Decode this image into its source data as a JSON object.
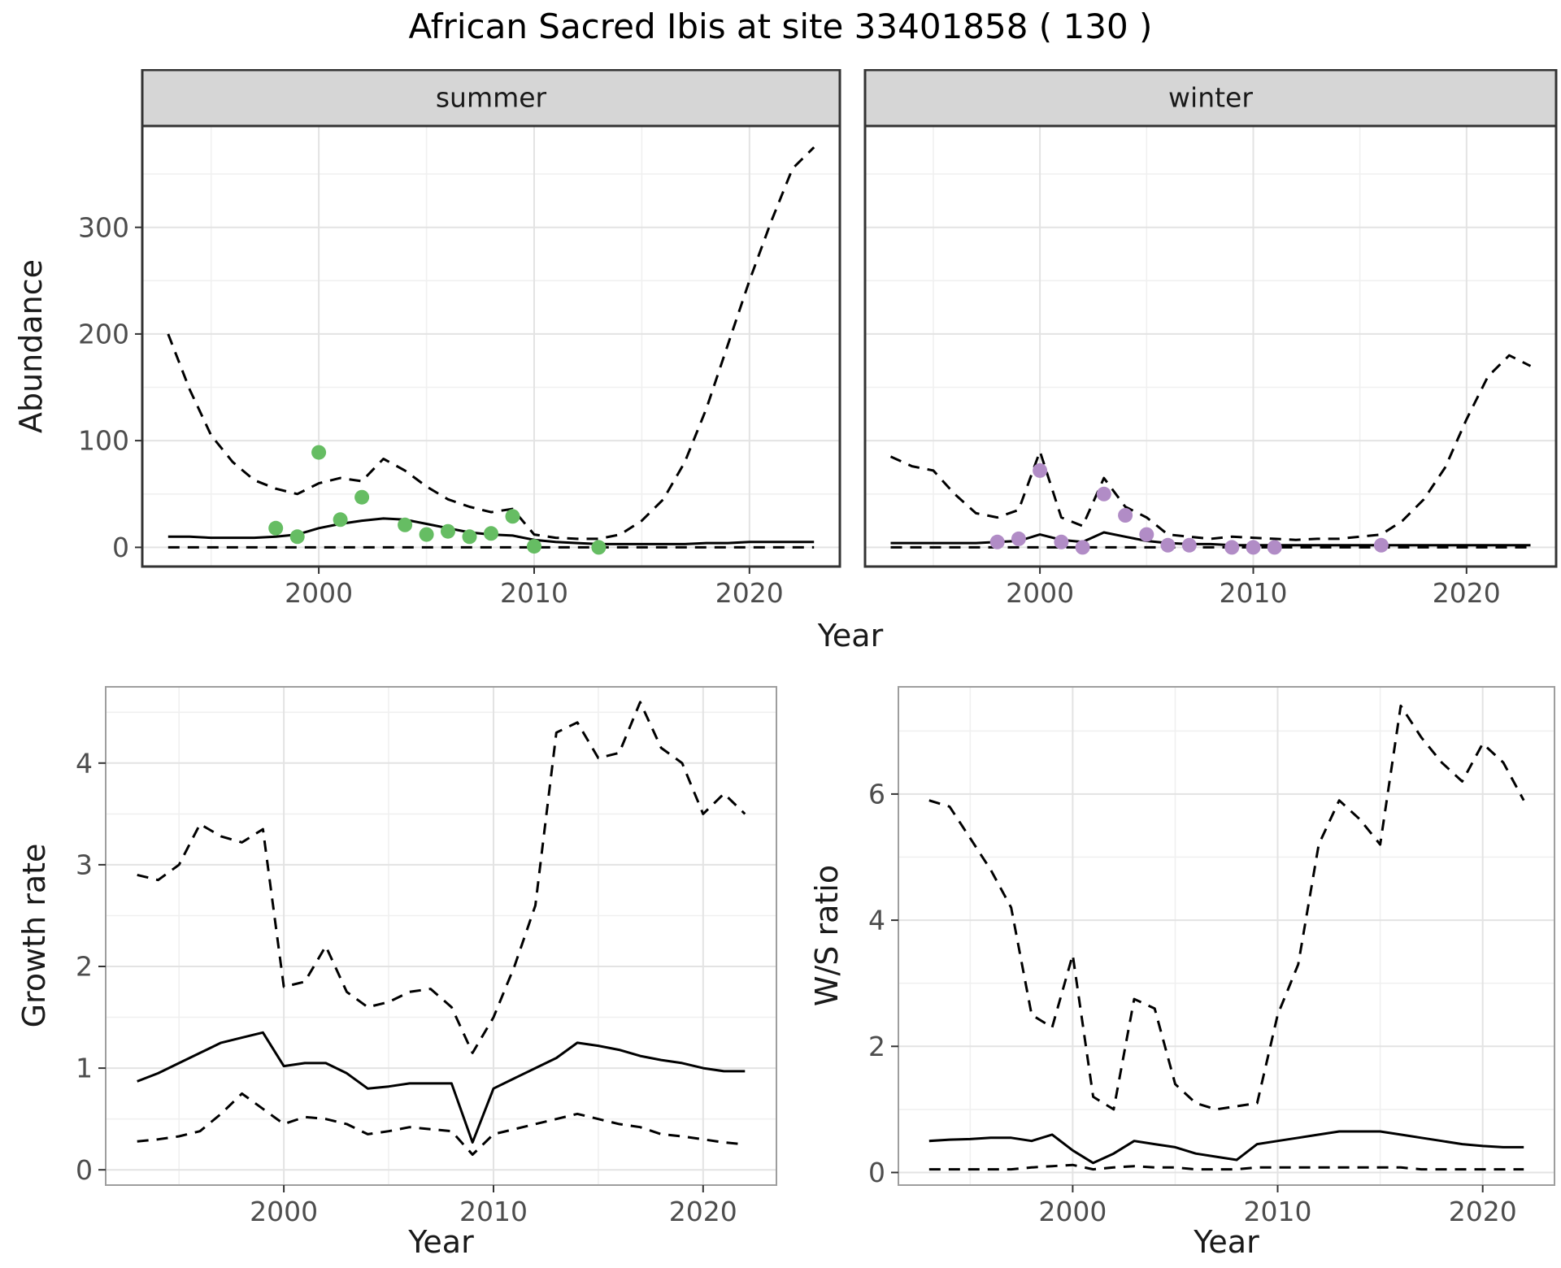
{
  "title": "African Sacred Ibis at site 33401858 ( 130 )",
  "colors": {
    "line": "#000000",
    "summer_points": "#66bd63",
    "winter_points": "#b18cc6",
    "strip_bg": "#d6d6d6",
    "grid_major": "#e3e3e3",
    "grid_minor": "#f0f0f0",
    "tick_text": "#4d4d4d"
  },
  "chart_data": [
    {
      "id": "summer-abundance",
      "type": "line",
      "facet": "summer",
      "xlabel": "Year",
      "ylabel": "Abundance",
      "xlim": [
        1991.8,
        2024.2
      ],
      "ylim": [
        -18,
        395
      ],
      "xticks": [
        2000,
        2010,
        2020
      ],
      "yticks": [
        0,
        100,
        200,
        300
      ],
      "xminor": [
        1995,
        2005,
        2015
      ],
      "yminor": [
        50,
        150,
        250,
        350
      ],
      "panel_border": "#333333",
      "show_y_axis": true,
      "series": [
        {
          "name": "upper-ci",
          "style": "dashed",
          "color": "#000000",
          "x": [
            1993,
            1994,
            1995,
            1996,
            1997,
            1998,
            1999,
            2000,
            2001,
            2002,
            2003,
            2004,
            2005,
            2006,
            2007,
            2008,
            2009,
            2010,
            2011,
            2012,
            2013,
            2014,
            2015,
            2016,
            2017,
            2018,
            2019,
            2020,
            2021,
            2022,
            2023
          ],
          "y": [
            200,
            148,
            105,
            80,
            63,
            55,
            50,
            60,
            65,
            62,
            83,
            72,
            57,
            45,
            38,
            33,
            36,
            12,
            9,
            8,
            8,
            12,
            25,
            45,
            80,
            130,
            190,
            250,
            305,
            355,
            375
          ]
        },
        {
          "name": "lower-ci",
          "style": "dashed",
          "color": "#000000",
          "x": [
            1993,
            1994,
            1995,
            1996,
            1997,
            1998,
            1999,
            2000,
            2001,
            2002,
            2003,
            2004,
            2005,
            2006,
            2007,
            2008,
            2009,
            2010,
            2011,
            2012,
            2013,
            2014,
            2015,
            2016,
            2017,
            2018,
            2019,
            2020,
            2021,
            2022,
            2023
          ],
          "y": [
            0,
            0,
            0,
            0,
            0,
            0,
            0,
            0,
            0,
            0,
            0,
            0,
            0,
            0,
            0,
            0,
            0,
            0,
            0,
            0,
            0,
            0,
            0,
            0,
            0,
            0,
            0,
            0,
            0,
            0,
            0
          ]
        },
        {
          "name": "median",
          "style": "solid",
          "color": "#000000",
          "x": [
            1993,
            1994,
            1995,
            1996,
            1997,
            1998,
            1999,
            2000,
            2001,
            2002,
            2003,
            2004,
            2005,
            2006,
            2007,
            2008,
            2009,
            2010,
            2011,
            2012,
            2013,
            2014,
            2015,
            2016,
            2017,
            2018,
            2019,
            2020,
            2021,
            2022,
            2023
          ],
          "y": [
            10,
            10,
            9,
            9,
            9,
            10,
            12,
            18,
            22,
            25,
            27,
            26,
            22,
            18,
            14,
            12,
            11,
            7,
            5,
            4,
            3,
            3,
            3,
            3,
            3,
            4,
            4,
            5,
            5,
            5,
            5
          ]
        },
        {
          "name": "observations",
          "style": "points",
          "color": "#66bd63",
          "x": [
            1998,
            1999,
            2000,
            2001,
            2002,
            2004,
            2005,
            2006,
            2007,
            2008,
            2009,
            2010,
            2013
          ],
          "y": [
            18,
            10,
            89,
            26,
            47,
            21,
            12,
            15,
            10,
            13,
            29,
            1,
            0
          ]
        }
      ]
    },
    {
      "id": "winter-abundance",
      "type": "line",
      "facet": "winter",
      "xlabel": "Year",
      "ylabel": "Abundance",
      "xlim": [
        1991.8,
        2024.2
      ],
      "ylim": [
        -18,
        395
      ],
      "xticks": [
        2000,
        2010,
        2020
      ],
      "yticks": [
        0,
        100,
        200,
        300
      ],
      "xminor": [
        1995,
        2005,
        2015
      ],
      "yminor": [
        50,
        150,
        250,
        350
      ],
      "panel_border": "#333333",
      "show_y_axis": false,
      "series": [
        {
          "name": "upper-ci",
          "style": "dashed",
          "color": "#000000",
          "x": [
            1993,
            1994,
            1995,
            1996,
            1997,
            1998,
            1999,
            2000,
            2001,
            2002,
            2003,
            2004,
            2005,
            2006,
            2007,
            2008,
            2009,
            2010,
            2011,
            2012,
            2013,
            2014,
            2015,
            2016,
            2017,
            2018,
            2019,
            2020,
            2021,
            2022,
            2023
          ],
          "y": [
            85,
            76,
            72,
            50,
            32,
            28,
            35,
            90,
            28,
            20,
            65,
            38,
            28,
            12,
            10,
            8,
            10,
            9,
            8,
            7,
            8,
            8,
            10,
            12,
            25,
            45,
            75,
            120,
            160,
            180,
            170
          ]
        },
        {
          "name": "lower-ci",
          "style": "dashed",
          "color": "#000000",
          "x": [
            1993,
            1994,
            1995,
            1996,
            1997,
            1998,
            1999,
            2000,
            2001,
            2002,
            2003,
            2004,
            2005,
            2006,
            2007,
            2008,
            2009,
            2010,
            2011,
            2012,
            2013,
            2014,
            2015,
            2016,
            2017,
            2018,
            2019,
            2020,
            2021,
            2022,
            2023
          ],
          "y": [
            0,
            0,
            0,
            0,
            0,
            0,
            0,
            0,
            0,
            0,
            0,
            0,
            0,
            0,
            0,
            0,
            0,
            0,
            0,
            0,
            0,
            0,
            0,
            0,
            0,
            0,
            0,
            0,
            0,
            0,
            0
          ]
        },
        {
          "name": "median",
          "style": "solid",
          "color": "#000000",
          "x": [
            1993,
            1994,
            1995,
            1996,
            1997,
            1998,
            1999,
            2000,
            2001,
            2002,
            2003,
            2004,
            2005,
            2006,
            2007,
            2008,
            2009,
            2010,
            2011,
            2012,
            2013,
            2014,
            2015,
            2016,
            2017,
            2018,
            2019,
            2020,
            2021,
            2022,
            2023
          ],
          "y": [
            4,
            4,
            4,
            4,
            4,
            5,
            6,
            12,
            7,
            5,
            14,
            10,
            6,
            4,
            3,
            3,
            2,
            2,
            2,
            2,
            2,
            2,
            2,
            2,
            2,
            2,
            2,
            2,
            2,
            2,
            2
          ]
        },
        {
          "name": "observations",
          "style": "points",
          "color": "#b18cc6",
          "x": [
            1998,
            1999,
            2000,
            2001,
            2002,
            2003,
            2004,
            2005,
            2006,
            2007,
            2009,
            2010,
            2011,
            2016
          ],
          "y": [
            5,
            8,
            72,
            5,
            0,
            50,
            30,
            12,
            2,
            2,
            0,
            0,
            0,
            2
          ]
        }
      ]
    },
    {
      "id": "growth-rate",
      "type": "line",
      "facet": null,
      "xlabel": "Year",
      "ylabel": "Growth rate",
      "xlim": [
        1991.5,
        2023.5
      ],
      "ylim": [
        -0.15,
        4.75
      ],
      "xticks": [
        2000,
        2010,
        2020
      ],
      "yticks": [
        0,
        1,
        2,
        3,
        4
      ],
      "xminor": [
        1995,
        2005,
        2015
      ],
      "yminor": [
        0.5,
        1.5,
        2.5,
        3.5,
        4.5
      ],
      "panel_border": "#9e9e9e",
      "show_y_axis": true,
      "series": [
        {
          "name": "upper-ci",
          "style": "dashed",
          "color": "#000000",
          "x": [
            1993,
            1994,
            1995,
            1996,
            1997,
            1998,
            1999,
            2000,
            2001,
            2002,
            2003,
            2004,
            2005,
            2006,
            2007,
            2008,
            2009,
            2010,
            2011,
            2012,
            2013,
            2014,
            2015,
            2016,
            2017,
            2018,
            2019,
            2020,
            2021,
            2022
          ],
          "y": [
            2.9,
            2.85,
            3.0,
            3.4,
            3.28,
            3.22,
            3.35,
            1.8,
            1.85,
            2.2,
            1.75,
            1.6,
            1.65,
            1.75,
            1.78,
            1.6,
            1.15,
            1.5,
            2.0,
            2.6,
            4.3,
            4.4,
            4.05,
            4.1,
            4.6,
            4.15,
            4.0,
            3.5,
            3.7,
            3.5
          ]
        },
        {
          "name": "lower-ci",
          "style": "dashed",
          "color": "#000000",
          "x": [
            1993,
            1994,
            1995,
            1996,
            1997,
            1998,
            1999,
            2000,
            2001,
            2002,
            2003,
            2004,
            2005,
            2006,
            2007,
            2008,
            2009,
            2010,
            2011,
            2012,
            2013,
            2014,
            2015,
            2016,
            2017,
            2018,
            2019,
            2020,
            2021,
            2022
          ],
          "y": [
            0.28,
            0.3,
            0.33,
            0.38,
            0.55,
            0.75,
            0.6,
            0.45,
            0.52,
            0.5,
            0.45,
            0.35,
            0.38,
            0.42,
            0.4,
            0.38,
            0.15,
            0.35,
            0.4,
            0.45,
            0.5,
            0.55,
            0.5,
            0.45,
            0.42,
            0.35,
            0.33,
            0.3,
            0.27,
            0.25
          ]
        },
        {
          "name": "median",
          "style": "solid",
          "color": "#000000",
          "x": [
            1993,
            1994,
            1995,
            1996,
            1997,
            1998,
            1999,
            2000,
            2001,
            2002,
            2003,
            2004,
            2005,
            2006,
            2007,
            2008,
            2009,
            2010,
            2011,
            2012,
            2013,
            2014,
            2015,
            2016,
            2017,
            2018,
            2019,
            2020,
            2021,
            2022
          ],
          "y": [
            0.87,
            0.95,
            1.05,
            1.15,
            1.25,
            1.3,
            1.35,
            1.02,
            1.05,
            1.05,
            0.95,
            0.8,
            0.82,
            0.85,
            0.85,
            0.85,
            0.27,
            0.8,
            0.9,
            1.0,
            1.1,
            1.25,
            1.22,
            1.18,
            1.12,
            1.08,
            1.05,
            1.0,
            0.97,
            0.97
          ]
        }
      ]
    },
    {
      "id": "ws-ratio",
      "type": "line",
      "facet": null,
      "xlabel": "Year",
      "ylabel": "W/S ratio",
      "xlim": [
        1991.5,
        2023.5
      ],
      "ylim": [
        -0.2,
        7.7
      ],
      "xticks": [
        2000,
        2010,
        2020
      ],
      "yticks": [
        0,
        2,
        4,
        6
      ],
      "xminor": [
        1995,
        2005,
        2015
      ],
      "yminor": [
        1,
        3,
        5,
        7
      ],
      "panel_border": "#9e9e9e",
      "show_y_axis": true,
      "series": [
        {
          "name": "upper-ci",
          "style": "dashed",
          "color": "#000000",
          "x": [
            1993,
            1994,
            1995,
            1996,
            1997,
            1998,
            1999,
            2000,
            2001,
            2002,
            2003,
            2004,
            2005,
            2006,
            2007,
            2008,
            2009,
            2010,
            2011,
            2012,
            2013,
            2014,
            2015,
            2016,
            2017,
            2018,
            2019,
            2020,
            2021,
            2022
          ],
          "y": [
            5.9,
            5.8,
            5.3,
            4.8,
            4.2,
            2.5,
            2.3,
            3.45,
            1.2,
            1.0,
            2.75,
            2.6,
            1.4,
            1.1,
            1.0,
            1.05,
            1.1,
            2.5,
            3.3,
            5.2,
            5.9,
            5.6,
            5.2,
            7.4,
            6.9,
            6.5,
            6.2,
            6.8,
            6.5,
            5.9
          ]
        },
        {
          "name": "lower-ci",
          "style": "dashed",
          "color": "#000000",
          "x": [
            1993,
            1994,
            1995,
            1996,
            1997,
            1998,
            1999,
            2000,
            2001,
            2002,
            2003,
            2004,
            2005,
            2006,
            2007,
            2008,
            2009,
            2010,
            2011,
            2012,
            2013,
            2014,
            2015,
            2016,
            2017,
            2018,
            2019,
            2020,
            2021,
            2022
          ],
          "y": [
            0.05,
            0.05,
            0.05,
            0.05,
            0.05,
            0.08,
            0.1,
            0.12,
            0.05,
            0.08,
            0.1,
            0.08,
            0.08,
            0.05,
            0.05,
            0.05,
            0.08,
            0.08,
            0.08,
            0.08,
            0.08,
            0.08,
            0.08,
            0.08,
            0.05,
            0.05,
            0.05,
            0.05,
            0.05,
            0.05
          ]
        },
        {
          "name": "median",
          "style": "solid",
          "color": "#000000",
          "x": [
            1993,
            1994,
            1995,
            1996,
            1997,
            1998,
            1999,
            2000,
            2001,
            2002,
            2003,
            2004,
            2005,
            2006,
            2007,
            2008,
            2009,
            2010,
            2011,
            2012,
            2013,
            2014,
            2015,
            2016,
            2017,
            2018,
            2019,
            2020,
            2021,
            2022
          ],
          "y": [
            0.5,
            0.52,
            0.53,
            0.55,
            0.55,
            0.5,
            0.6,
            0.35,
            0.15,
            0.3,
            0.5,
            0.45,
            0.4,
            0.3,
            0.25,
            0.2,
            0.45,
            0.5,
            0.55,
            0.6,
            0.65,
            0.65,
            0.65,
            0.6,
            0.55,
            0.5,
            0.45,
            0.42,
            0.4,
            0.4
          ]
        }
      ]
    }
  ]
}
